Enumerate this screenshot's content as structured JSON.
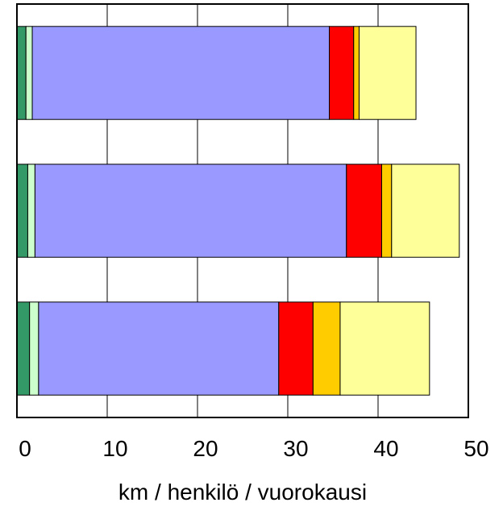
{
  "chart_data": {
    "type": "stacked-barh",
    "x_label": "km / henkilö / vuorokausi",
    "categories": [
      null,
      null,
      null
    ],
    "series": [
      {
        "color": "#339966",
        "values": [
          1.0,
          1.2,
          1.4
        ]
      },
      {
        "color": "#ccffcc",
        "values": [
          0.7,
          0.8,
          1.0
        ]
      },
      {
        "color": "#9999ff",
        "values": [
          32.9,
          34.5,
          26.6
        ]
      },
      {
        "color": "#ff0000",
        "values": [
          2.7,
          3.9,
          3.8
        ]
      },
      {
        "color": "#ffcc00",
        "values": [
          0.6,
          1.1,
          3.0
        ]
      },
      {
        "color": "#ffff99",
        "values": [
          6.3,
          7.5,
          9.9
        ]
      }
    ],
    "xlim": [
      0,
      50
    ],
    "xticks": [
      0,
      10,
      20,
      30,
      40,
      50
    ],
    "grid": true
  }
}
